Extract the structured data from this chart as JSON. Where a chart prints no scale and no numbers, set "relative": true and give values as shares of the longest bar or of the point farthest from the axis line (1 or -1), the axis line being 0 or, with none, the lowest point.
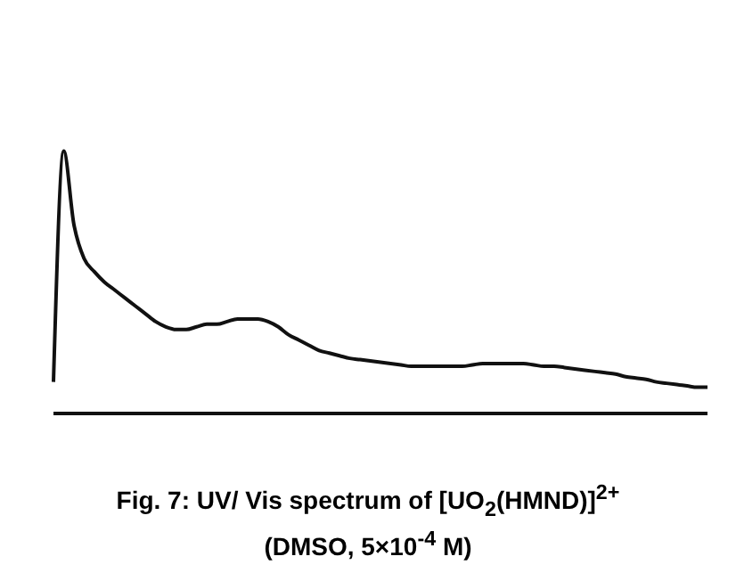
{
  "chart_data": {
    "type": "line",
    "title": "Fig. 7: UV/ Vis spectrum of [UO$_{2}$(HMND)]$^{2+}$",
    "subtitle": "(DMSO, 5×10$^{-4}$ M)",
    "relative": true,
    "marker": "none",
    "categories": [
      null,
      null,
      null,
      null,
      null,
      null,
      null,
      null,
      null,
      null,
      null,
      null,
      null,
      null,
      null,
      null,
      null,
      null,
      null,
      null,
      null,
      null,
      null,
      null,
      null,
      null,
      null,
      null,
      null,
      null,
      null,
      null,
      null,
      null,
      null,
      null,
      null,
      null,
      null,
      null,
      null,
      null,
      null,
      null,
      null,
      null,
      null,
      null,
      null,
      null,
      null,
      null,
      null,
      null,
      null,
      null,
      null,
      null,
      null,
      null,
      null,
      null,
      null,
      null,
      null
    ],
    "series": [
      {
        "color": "#111111",
        "values": [
          0.12,
          1,
          0.72,
          0.59,
          0.54,
          0.5,
          0.47,
          0.44,
          0.41,
          0.38,
          0.35,
          0.33,
          0.32,
          0.32,
          0.33,
          0.34,
          0.34,
          0.35,
          0.36,
          0.36,
          0.36,
          0.35,
          0.33,
          0.3,
          0.28,
          0.26,
          0.24,
          0.23,
          0.22,
          0.21,
          0.205,
          0.2,
          0.195,
          0.19,
          0.185,
          0.18,
          0.18,
          0.18,
          0.18,
          0.18,
          0.18,
          0.185,
          0.19,
          0.19,
          0.19,
          0.19,
          0.19,
          0.185,
          0.18,
          0.18,
          0.175,
          0.17,
          0.165,
          0.16,
          0.155,
          0.15,
          0.14,
          0.135,
          0.13,
          0.12,
          0.115,
          0.11,
          0.105,
          0.1,
          0.1
        ]
      }
    ]
  }
}
